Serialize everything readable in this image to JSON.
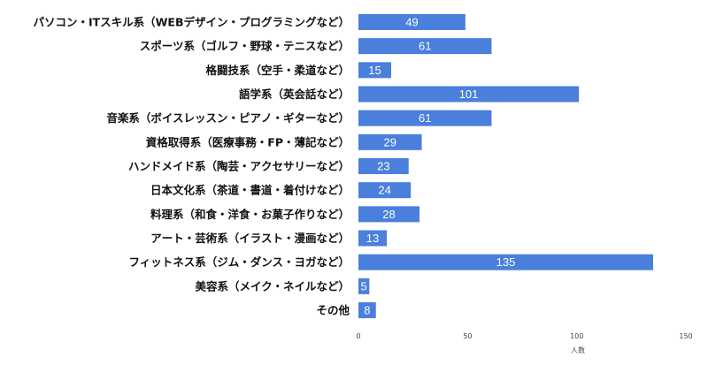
{
  "chart_data": {
    "type": "bar",
    "orientation": "horizontal",
    "categories": [
      "パソコン・ITスキル系（WEBデザイン・プログラミングなど）",
      "スポーツ系（ゴルフ・野球・テニスなど）",
      "格闘技系（空手・柔道など）",
      "語学系（英会話など）",
      "音楽系（ボイスレッスン・ピアノ・ギターなど）",
      "資格取得系（医療事務・FP・薄記など）",
      "ハンドメイド系（陶芸・アクセサリーなど）",
      "日本文化系（茶道・書道・着付けなど）",
      "料理系（和食・洋食・お菓子作りなど）",
      "アート・芸術系（イラスト・漫画など）",
      "フィットネス系（ジム・ダンス・ヨガなど）",
      "美容系（メイク・ネイルなど）",
      "その他"
    ],
    "values": [
      49,
      61,
      15,
      101,
      61,
      29,
      23,
      24,
      28,
      13,
      135,
      5,
      8
    ],
    "xlabel": "人数",
    "ylabel": "",
    "xlim": [
      0,
      150
    ],
    "xticks": [
      "0",
      "50",
      "100",
      "150"
    ],
    "grid": false,
    "data_labels": true,
    "bar_color": "#4a7fdc"
  }
}
